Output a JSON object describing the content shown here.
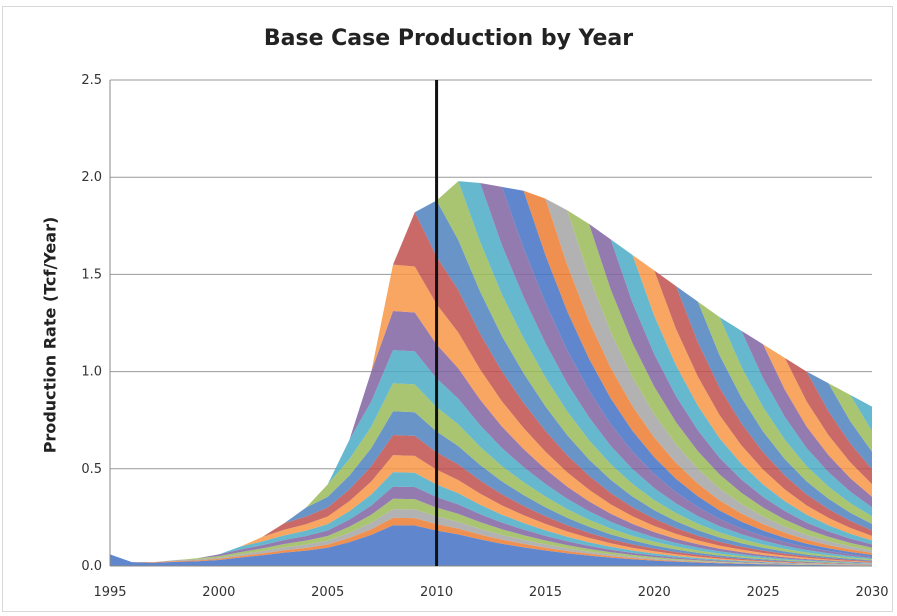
{
  "chart_data": {
    "type": "area",
    "title": "Base Case Production by Year",
    "xlabel": "",
    "ylabel": "Production Rate (Tcf/Year)",
    "xlim": [
      1995,
      2030
    ],
    "ylim": [
      0,
      2.5
    ],
    "x_ticks": [
      "1995",
      "2000",
      "2005",
      "2010",
      "2015",
      "2020",
      "2025",
      "2030"
    ],
    "y_ticks": [
      "0.0",
      "0.5",
      "1.0",
      "1.5",
      "2.0",
      "2.5"
    ],
    "grid": "horizontal",
    "legend": "none",
    "vertical_line_x": 2010,
    "total_x": [
      1995,
      1996,
      1997,
      1998,
      1999,
      2000,
      2001,
      2002,
      2003,
      2004,
      2005,
      2006,
      2007,
      2008,
      2009,
      2010,
      2011,
      2012,
      2013,
      2014,
      2015,
      2016,
      2017,
      2018,
      2019,
      2020,
      2021,
      2022,
      2023,
      2024,
      2025,
      2026,
      2027,
      2028,
      2029,
      2030
    ],
    "total_y": [
      0.06,
      0.02,
      0.02,
      0.03,
      0.04,
      0.06,
      0.1,
      0.15,
      0.22,
      0.3,
      0.42,
      0.65,
      1.0,
      1.55,
      1.82,
      1.88,
      1.98,
      1.97,
      1.95,
      1.93,
      1.89,
      1.83,
      1.76,
      1.68,
      1.6,
      1.52,
      1.44,
      1.36,
      1.28,
      1.21,
      1.14,
      1.07,
      1.0,
      0.94,
      0.88,
      0.82
    ],
    "cohort_start_years": [
      1995,
      1996,
      1997,
      1998,
      1999,
      2000,
      2001,
      2002,
      2003,
      2004,
      2005,
      2006,
      2007,
      2008,
      2009,
      2010,
      2011,
      2012,
      2013,
      2014,
      2015,
      2016,
      2017,
      2018,
      2019,
      2020,
      2021,
      2022,
      2023,
      2024,
      2025,
      2026,
      2027,
      2028,
      2029,
      2030
    ],
    "palette": [
      "#4472C4",
      "#ED7D31",
      "#A5A5A5",
      "#9BBB59",
      "#8064A2",
      "#4BACC6",
      "#F79646",
      "#C0504D",
      "#4F81BD",
      "#9BBB59",
      "#4BACC6",
      "#8064A2",
      "#F79646",
      "#C0504D",
      "#4F81BD",
      "#9BBB59",
      "#4BACC6",
      "#8064A2"
    ]
  }
}
